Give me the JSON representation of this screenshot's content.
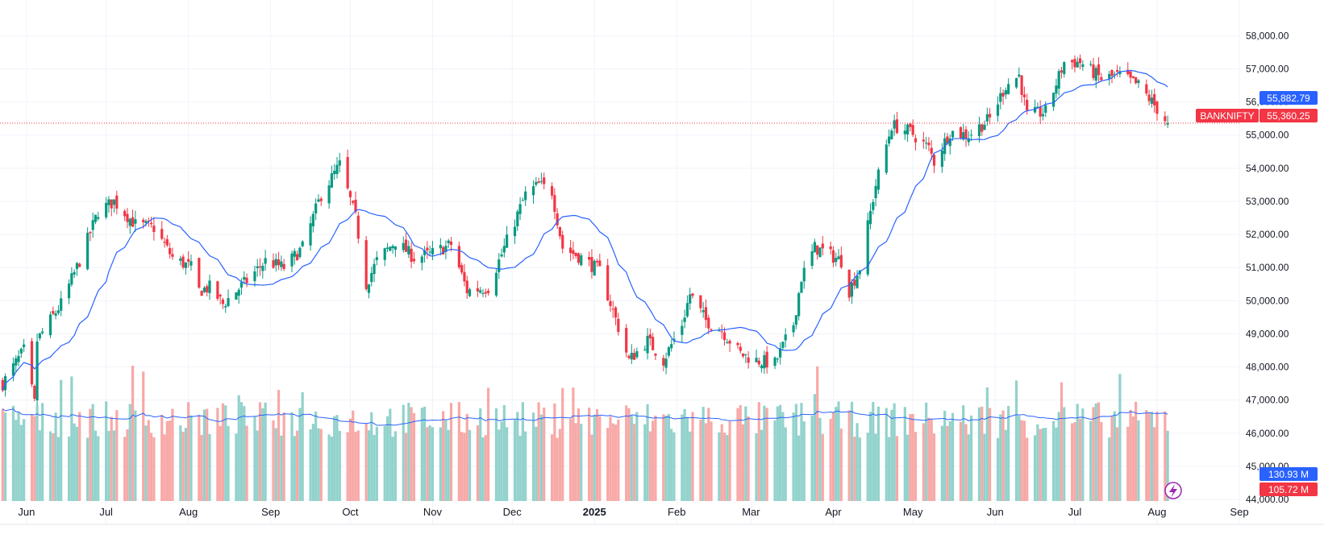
{
  "chart_data": {
    "type": "candlestick",
    "symbol": "BANKNIFTY",
    "grid": true,
    "price_axis": {
      "side": "right",
      "range": [
        44000,
        58350
      ],
      "ticks": [
        "58,000.00",
        "57,000.00",
        "56,000.00",
        "55,000.00",
        "54,000.00",
        "53,000.00",
        "52,000.00",
        "51,000.00",
        "50,000.00",
        "49,000.00",
        "48,000.00",
        "47,000.00",
        "46,000.00",
        "45,000.00",
        "44,000.00"
      ]
    },
    "time_axis": {
      "labels": [
        {
          "label": "Jun",
          "bold": false
        },
        {
          "label": "Jul",
          "bold": false
        },
        {
          "label": "Aug",
          "bold": false
        },
        {
          "label": "Sep",
          "bold": false
        },
        {
          "label": "Oct",
          "bold": false
        },
        {
          "label": "Nov",
          "bold": false
        },
        {
          "label": "Dec",
          "bold": false
        },
        {
          "label": "2025",
          "bold": true
        },
        {
          "label": "Feb",
          "bold": false
        },
        {
          "label": "Mar",
          "bold": false
        },
        {
          "label": "Apr",
          "bold": false
        },
        {
          "label": "May",
          "bold": false
        },
        {
          "label": "Jun",
          "bold": false
        },
        {
          "label": "Jul",
          "bold": false
        },
        {
          "label": "Aug",
          "bold": false
        },
        {
          "label": "Sep",
          "bold": false
        }
      ]
    },
    "price_anchors": [
      [
        "2024-05-23",
        47500
      ],
      [
        "2024-05-31",
        48500
      ],
      [
        "2024-06-04",
        46900
      ],
      [
        "2024-06-05",
        48800
      ],
      [
        "2024-06-14",
        49900
      ],
      [
        "2024-06-21",
        51200
      ],
      [
        "2024-06-28",
        52700
      ],
      [
        "2024-07-04",
        53000
      ],
      [
        "2024-07-12",
        52300
      ],
      [
        "2024-07-19",
        52200
      ],
      [
        "2024-07-26",
        51300
      ],
      [
        "2024-08-02",
        51000
      ],
      [
        "2024-08-05",
        50300
      ],
      [
        "2024-08-09",
        50400
      ],
      [
        "2024-08-14",
        49900
      ],
      [
        "2024-08-23",
        50600
      ],
      [
        "2024-08-30",
        51200
      ],
      [
        "2024-09-06",
        51000
      ],
      [
        "2024-09-13",
        51600
      ],
      [
        "2024-09-20",
        53200
      ],
      [
        "2024-09-27",
        54100
      ],
      [
        "2024-10-03",
        52500
      ],
      [
        "2024-10-07",
        50500
      ],
      [
        "2024-10-11",
        51200
      ],
      [
        "2024-10-18",
        51800
      ],
      [
        "2024-10-25",
        51300
      ],
      [
        "2024-10-31",
        51400
      ],
      [
        "2024-11-08",
        51700
      ],
      [
        "2024-11-14",
        50300
      ],
      [
        "2024-11-22",
        50400
      ],
      [
        "2024-11-29",
        51800
      ],
      [
        "2024-12-06",
        53200
      ],
      [
        "2024-12-11",
        53500
      ],
      [
        "2024-12-16",
        53300
      ],
      [
        "2024-12-20",
        51600
      ],
      [
        "2024-12-27",
        51300
      ],
      [
        "2025-01-03",
        50900
      ],
      [
        "2025-01-10",
        49200
      ],
      [
        "2025-01-14",
        48200
      ],
      [
        "2025-01-21",
        48800
      ],
      [
        "2025-01-27",
        48200
      ],
      [
        "2025-02-03",
        49300
      ],
      [
        "2025-02-06",
        50200
      ],
      [
        "2025-02-12",
        49400
      ],
      [
        "2025-02-18",
        49100
      ],
      [
        "2025-02-25",
        48400
      ],
      [
        "2025-03-03",
        48200
      ],
      [
        "2025-03-10",
        48100
      ],
      [
        "2025-03-17",
        49300
      ],
      [
        "2025-03-20",
        50700
      ],
      [
        "2025-03-25",
        51600
      ],
      [
        "2025-03-28",
        51500
      ],
      [
        "2025-04-04",
        51200
      ],
      [
        "2025-04-07",
        50300
      ],
      [
        "2025-04-11",
        51000
      ],
      [
        "2025-04-17",
        53500
      ],
      [
        "2025-04-23",
        55300
      ],
      [
        "2025-04-30",
        55100
      ],
      [
        "2025-05-07",
        54600
      ],
      [
        "2025-05-09",
        54200
      ],
      [
        "2025-05-15",
        55100
      ],
      [
        "2025-05-22",
        55000
      ],
      [
        "2025-05-30",
        55500
      ],
      [
        "2025-06-05",
        56500
      ],
      [
        "2025-06-10",
        56800
      ],
      [
        "2025-06-13",
        55600
      ],
      [
        "2025-06-20",
        55700
      ],
      [
        "2025-06-27",
        57200
      ],
      [
        "2025-07-03",
        57200
      ],
      [
        "2025-07-11",
        56700
      ],
      [
        "2025-07-18",
        56800
      ],
      [
        "2025-07-25",
        56500
      ],
      [
        "2025-07-31",
        55900
      ],
      [
        "2025-08-05",
        55360
      ]
    ],
    "last_close": 55360.25,
    "volume_panel": {
      "range": [
        0,
        160
      ],
      "unit": "M",
      "ma_level": 130.93,
      "last_volume": 105.72
    },
    "labels": {
      "symbol_tag": "BANKNIFTY",
      "ma_price": "55,882.79",
      "last_price": "55,360.25",
      "volume_ma": "130.93 M",
      "volume_last": "105.72 M"
    },
    "colors": {
      "up": "#089981",
      "down": "#f23645",
      "up_volume": "#92d2cc",
      "down_volume": "#f7a9a7",
      "ma_line": "#2962ff",
      "grid": "#f0f3fa",
      "axis_text": "#131722",
      "tag_red": "#f23645",
      "tag_blue": "#2962ff",
      "lightning": "#9c27b0"
    }
  }
}
